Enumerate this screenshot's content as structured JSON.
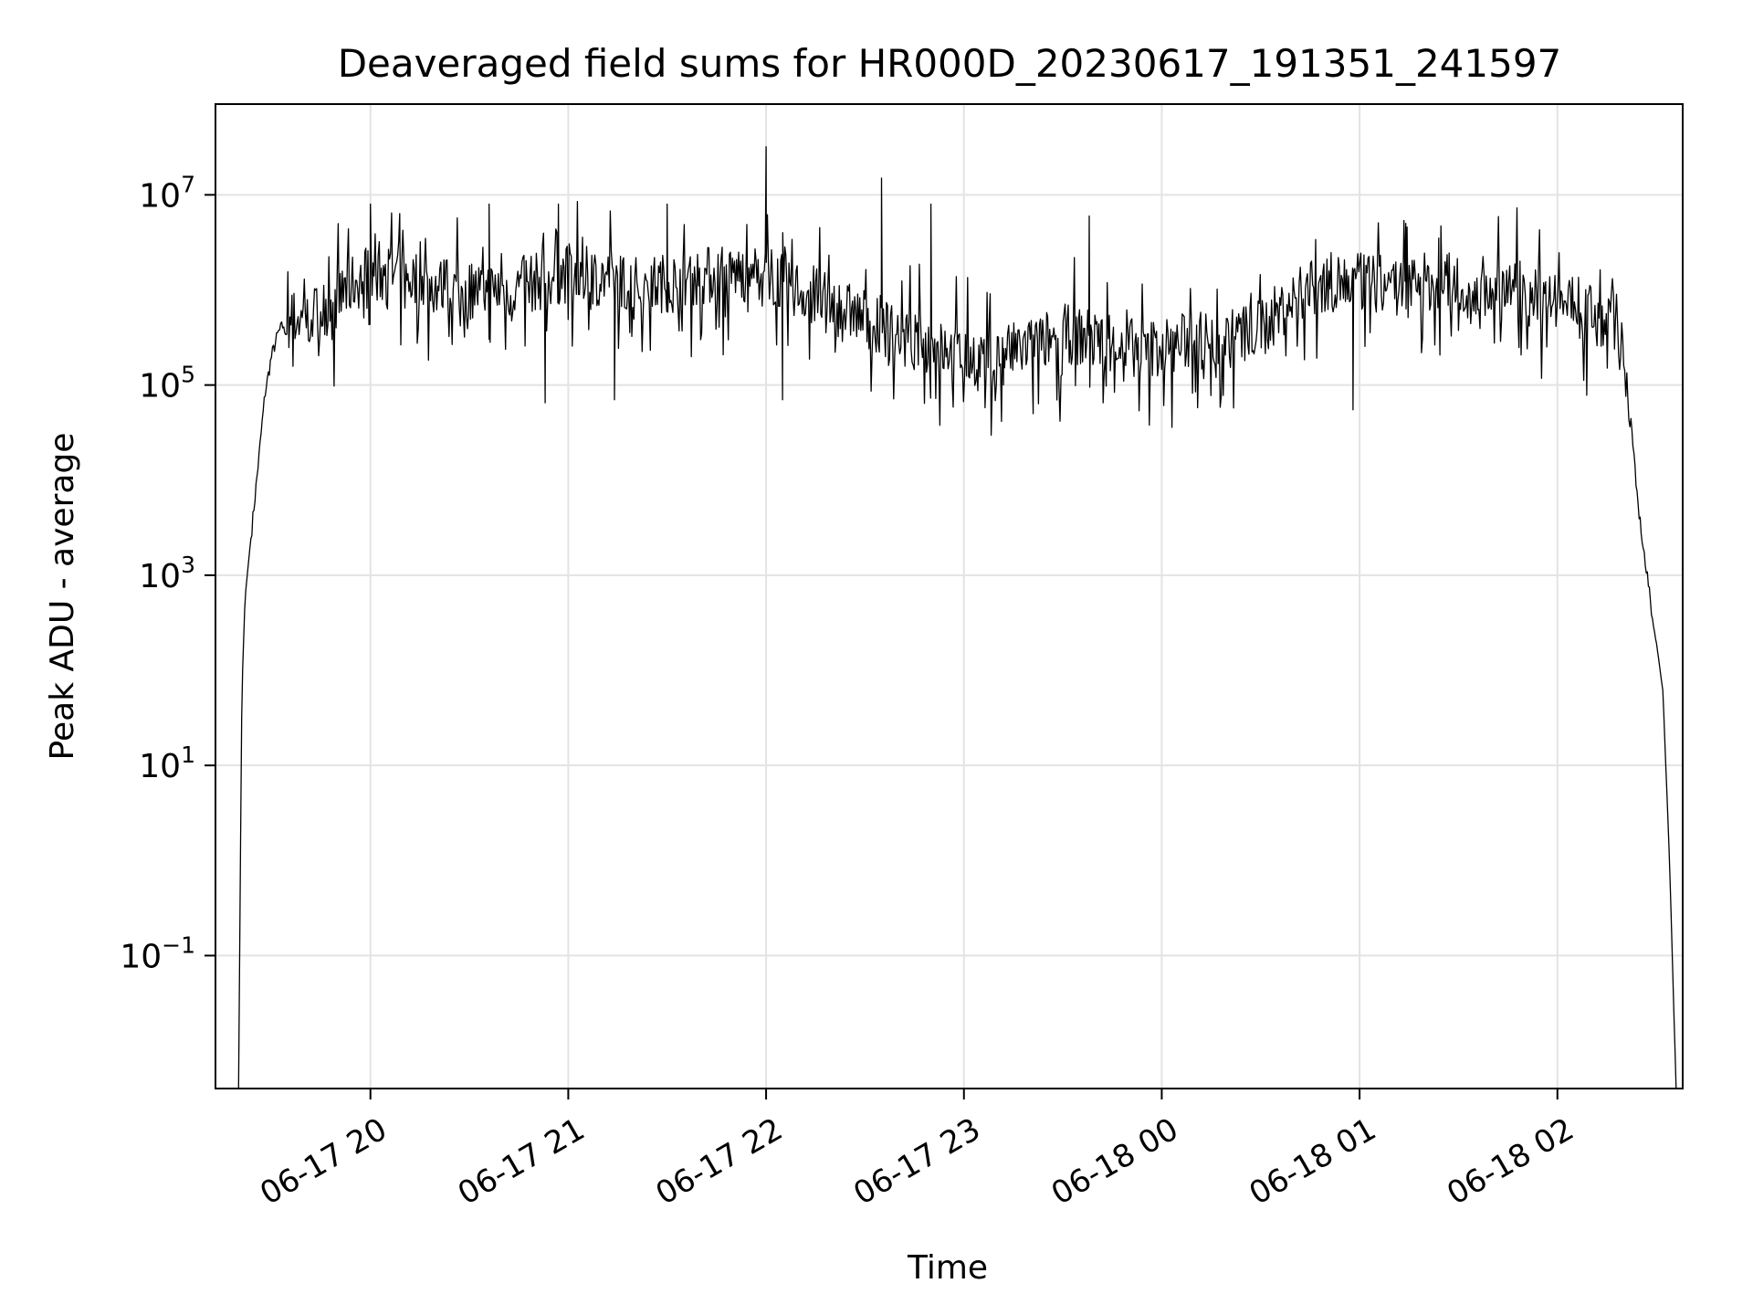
{
  "chart_data": {
    "type": "line",
    "title": "Deaveraged field sums for HR000D_20230617_191351_241597",
    "xlabel": "Time",
    "ylabel": "Peak ADU - average",
    "yscale": "log",
    "grid": true,
    "legend": "none",
    "line_color": "#000000",
    "x_ticks": [
      "06-17 20",
      "06-17 21",
      "06-17 22",
      "06-17 23",
      "06-18 00",
      "06-18 01",
      "06-18 02"
    ],
    "y_ticks": [
      {
        "base": "10",
        "exp": "−1",
        "value": 0.1
      },
      {
        "base": "10",
        "exp": "1",
        "value": 10
      },
      {
        "base": "10",
        "exp": "3",
        "value": 1000
      },
      {
        "base": "10",
        "exp": "5",
        "value": 100000
      },
      {
        "base": "10",
        "exp": "7",
        "value": 10000000
      }
    ],
    "xlim": [
      "2023-06-17 19:13",
      "2023-06-18 02:38"
    ],
    "ylim": [
      0.004,
      90000000
    ],
    "series": [
      {
        "x": [
          "2023-06-17 19:20",
          "2023-06-17 19:21",
          "2023-06-17 19:22",
          "2023-06-17 19:24",
          "2023-06-17 19:26",
          "2023-06-17 19:28",
          "2023-06-17 19:30",
          "2023-06-17 19:32",
          "2023-06-17 19:34",
          "2023-06-17 19:37",
          "2023-06-17 19:40",
          "2023-06-17 19:45",
          "2023-06-17 19:50",
          "2023-06-17 19:55",
          "2023-06-17 20:00",
          "2023-06-17 20:10",
          "2023-06-17 20:20",
          "2023-06-17 20:30",
          "2023-06-17 20:40",
          "2023-06-17 20:50",
          "2023-06-17 21:00",
          "2023-06-17 21:10",
          "2023-06-17 21:20",
          "2023-06-17 21:30",
          "2023-06-17 21:40",
          "2023-06-17 21:50",
          "2023-06-17 22:00",
          "2023-06-17 22:10",
          "2023-06-17 22:20",
          "2023-06-17 22:30",
          "2023-06-17 22:40",
          "2023-06-17 22:50",
          "2023-06-17 23:00",
          "2023-06-17 23:10",
          "2023-06-17 23:20",
          "2023-06-17 23:30",
          "2023-06-17 23:40",
          "2023-06-17 23:50",
          "2023-06-18 00:00",
          "2023-06-18 00:10",
          "2023-06-18 00:20",
          "2023-06-18 00:30",
          "2023-06-18 00:40",
          "2023-06-18 00:50",
          "2023-06-18 01:00",
          "2023-06-18 01:10",
          "2023-06-18 01:20",
          "2023-06-18 01:30",
          "2023-06-18 01:40",
          "2023-06-18 01:50",
          "2023-06-18 02:00",
          "2023-06-18 02:10",
          "2023-06-18 02:15",
          "2023-06-18 02:18",
          "2023-06-18 02:20",
          "2023-06-18 02:22",
          "2023-06-18 02:24",
          "2023-06-18 02:26",
          "2023-06-18 02:28",
          "2023-06-18 02:30",
          "2023-06-18 02:32",
          "2023-06-18 02:34",
          "2023-06-18 02:36"
        ],
        "y": [
          0.004,
          60,
          600,
          3000,
          15000,
          80000,
          200000,
          350000,
          450000,
          500000,
          500000,
          600000,
          800000,
          1200000,
          1500000,
          1400000,
          1100000,
          1000000,
          1000000,
          1200000,
          1500000,
          1400000,
          1100000,
          1200000,
          1400000,
          1500000,
          1500000,
          1000000,
          700000,
          500000,
          350000,
          250000,
          200000,
          200000,
          250000,
          350000,
          300000,
          250000,
          250000,
          300000,
          300000,
          400000,
          800000,
          1200000,
          1200000,
          1100000,
          1200000,
          1200000,
          1000000,
          1000000,
          800000,
          600000,
          500000,
          450000,
          350000,
          50000,
          8000,
          2000,
          600,
          200,
          60,
          1,
          0.004
        ],
        "noise_amplitude_log10": 0.45,
        "spikes": [
          {
            "x": "2023-06-17 22:00",
            "y": 32000000
          },
          {
            "x": "2023-06-17 22:35",
            "y": 15000000
          },
          {
            "x": "2023-06-17 21:30",
            "y": 8000000
          },
          {
            "x": "2023-06-17 20:00",
            "y": 8000000
          },
          {
            "x": "2023-06-17 20:36",
            "y": 8000000
          },
          {
            "x": "2023-06-17 20:57",
            "y": 8000000
          },
          {
            "x": "2023-06-17 22:50",
            "y": 8000000
          },
          {
            "x": "2023-06-17 23:38",
            "y": 6000000
          },
          {
            "x": "2023-06-18 01:14",
            "y": 5000000
          },
          {
            "x": "2023-06-18 01:24",
            "y": 3500000
          },
          {
            "x": "2023-06-17 23:12",
            "y": 100000
          },
          {
            "x": "2023-06-17 23:21",
            "y": 50000
          },
          {
            "x": "2023-06-18 00:58",
            "y": 55000
          },
          {
            "x": "2023-06-17 22:05",
            "y": 70000
          },
          {
            "x": "2023-06-17 20:53",
            "y": 65000
          },
          {
            "x": "2023-06-17 21:14",
            "y": 70000
          }
        ]
      }
    ]
  }
}
